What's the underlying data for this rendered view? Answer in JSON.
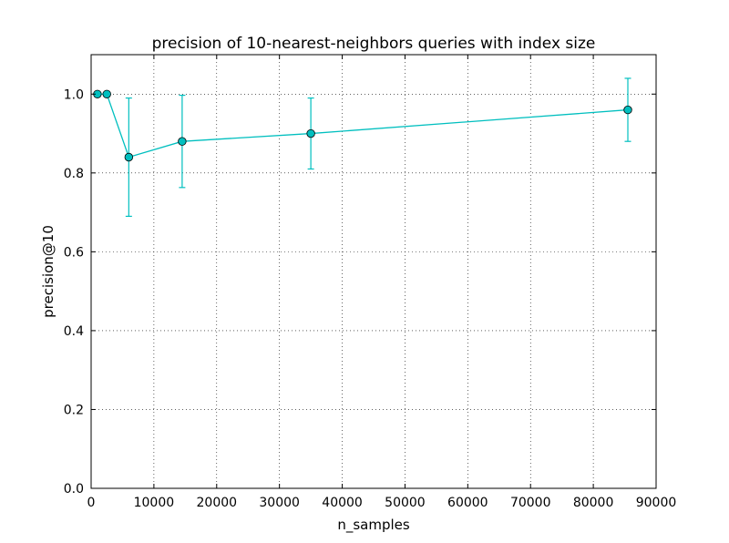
{
  "chart_data": {
    "type": "line",
    "title": "precision of 10-nearest-neighbors queries with index size",
    "xlabel": "n_samples",
    "ylabel": "precision@10",
    "xlim": [
      0,
      90000
    ],
    "ylim": [
      0,
      1.1
    ],
    "xticks": [
      0,
      10000,
      20000,
      30000,
      40000,
      50000,
      60000,
      70000,
      80000,
      90000
    ],
    "yticks": [
      0.0,
      0.2,
      0.4,
      0.6,
      0.8,
      1.0
    ],
    "xtick_labels": [
      "0",
      "10000",
      "20000",
      "30000",
      "40000",
      "50000",
      "60000",
      "70000",
      "80000",
      "90000"
    ],
    "ytick_labels": [
      "0.0",
      "0.2",
      "0.4",
      "0.6",
      "0.8",
      "1.0"
    ],
    "grid": true,
    "series": [
      {
        "color": "#00bfbf",
        "marker": "circle",
        "x": [
          1000,
          2500,
          6000,
          14500,
          35000,
          85500
        ],
        "y": [
          1.0,
          1.0,
          0.84,
          0.88,
          0.9,
          0.96
        ],
        "yerr": [
          0,
          0,
          0.15,
          0.117,
          0.09,
          0.08
        ]
      }
    ]
  }
}
